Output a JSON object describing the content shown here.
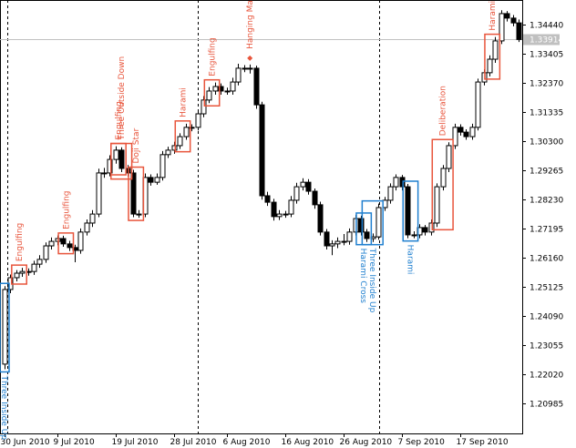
{
  "chart_data": {
    "type": "candlestick",
    "ylim": [
      1.19918,
      1.35313
    ],
    "yticks": [
      {
        "value": 1.3444,
        "label": "1.34440"
      },
      {
        "value": 1.33405,
        "label": "1.33405"
      },
      {
        "value": 1.3237,
        "label": "1.32370"
      },
      {
        "value": 1.31335,
        "label": "1.31335"
      },
      {
        "value": 1.303,
        "label": "1.30300"
      },
      {
        "value": 1.29265,
        "label": "1.29265"
      },
      {
        "value": 1.2823,
        "label": "1.28230"
      },
      {
        "value": 1.27195,
        "label": "1.27195"
      },
      {
        "value": 1.2616,
        "label": "1.26160"
      },
      {
        "value": 1.25125,
        "label": "1.25125"
      },
      {
        "value": 1.2409,
        "label": "1.24090"
      },
      {
        "value": 1.23055,
        "label": "1.23055"
      },
      {
        "value": 1.2202,
        "label": "1.22020"
      },
      {
        "value": 1.20985,
        "label": "1.20985"
      }
    ],
    "current_price": 1.33914,
    "categories": [
      "30 Jun 2010",
      null,
      null,
      null,
      null,
      null,
      null,
      null,
      null,
      "9 Jul 2010",
      null,
      null,
      null,
      null,
      null,
      null,
      null,
      null,
      null,
      "19 Jul 2010",
      null,
      null,
      null,
      null,
      null,
      null,
      null,
      null,
      null,
      "28 Jul 2010",
      null,
      null,
      null,
      null,
      null,
      null,
      null,
      null,
      "6 Aug 2010",
      null,
      null,
      null,
      null,
      null,
      null,
      null,
      null,
      null,
      "16 Aug 2010",
      null,
      null,
      null,
      null,
      null,
      null,
      null,
      null,
      null,
      "26 Aug 2010",
      null,
      null,
      null,
      null,
      null,
      null,
      null,
      null,
      null,
      "7 Sep 2010",
      null,
      null,
      null,
      null,
      null,
      null,
      null,
      null,
      null,
      "17 Sep 2010",
      null,
      null,
      null,
      null,
      null,
      null,
      null,
      null,
      null,
      null
    ],
    "ohlc": [
      [
        1.2238,
        1.2515,
        1.222,
        1.2503
      ],
      [
        1.2503,
        1.2556,
        1.249,
        1.2545
      ],
      [
        1.2545,
        1.2572,
        1.2532,
        1.2561
      ],
      [
        1.2561,
        1.258,
        1.2548,
        1.2567
      ],
      [
        1.2567,
        1.2578,
        1.2552,
        1.2567
      ],
      [
        1.2567,
        1.2605,
        1.2555,
        1.2593
      ],
      [
        1.2593,
        1.2625,
        1.258,
        1.261
      ],
      [
        1.261,
        1.267,
        1.2598,
        1.2658
      ],
      [
        1.2658,
        1.2688,
        1.2645,
        1.2674
      ],
      [
        1.2674,
        1.2695,
        1.266,
        1.2684
      ],
      [
        1.2684,
        1.2694,
        1.2655,
        1.2665
      ],
      [
        1.2665,
        1.2676,
        1.264,
        1.2652
      ],
      [
        1.2652,
        1.2662,
        1.26,
        1.2642
      ],
      [
        1.2642,
        1.272,
        1.263,
        1.2707
      ],
      [
        1.2707,
        1.2752,
        1.2695,
        1.2739
      ],
      [
        1.2739,
        1.2785,
        1.2725,
        1.2771
      ],
      [
        1.2771,
        1.2932,
        1.276,
        1.2917
      ],
      [
        1.2917,
        1.2935,
        1.29,
        1.2917
      ],
      [
        1.2917,
        1.298,
        1.2905,
        1.2965
      ],
      [
        1.2965,
        1.3012,
        1.295,
        1.2998
      ],
      [
        1.2998,
        1.3008,
        1.292,
        1.2933
      ],
      [
        1.2933,
        1.2945,
        1.2905,
        1.2917
      ],
      [
        1.2917,
        1.2928,
        1.276,
        1.2771
      ],
      [
        1.2771,
        1.2785,
        1.2758,
        1.2771
      ],
      [
        1.2771,
        1.2915,
        1.276,
        1.2901
      ],
      [
        1.2901,
        1.2912,
        1.2872,
        1.2884
      ],
      [
        1.2884,
        1.2915,
        1.2875,
        1.2901
      ],
      [
        1.2901,
        1.2995,
        1.289,
        1.2982
      ],
      [
        1.2982,
        1.301,
        1.297,
        1.2998
      ],
      [
        1.2998,
        1.3028,
        1.2985,
        1.3014
      ],
      [
        1.3014,
        1.3058,
        1.3002,
        1.3046
      ],
      [
        1.3046,
        1.3092,
        1.3035,
        1.3079
      ],
      [
        1.3079,
        1.309,
        1.3065,
        1.3079
      ],
      [
        1.3079,
        1.314,
        1.3068,
        1.3127
      ],
      [
        1.3127,
        1.319,
        1.3115,
        1.3176
      ],
      [
        1.3176,
        1.3222,
        1.3165,
        1.3208
      ],
      [
        1.3208,
        1.3238,
        1.3195,
        1.3224
      ],
      [
        1.3224,
        1.3235,
        1.3195,
        1.3208
      ],
      [
        1.3208,
        1.322,
        1.3195,
        1.3208
      ],
      [
        1.3208,
        1.3255,
        1.3195,
        1.324
      ],
      [
        1.324,
        1.3305,
        1.3228,
        1.3289
      ],
      [
        1.3289,
        1.33,
        1.3275,
        1.3289
      ],
      [
        1.3289,
        1.3302,
        1.327,
        1.3289
      ],
      [
        1.3289,
        1.3298,
        1.3145,
        1.3159
      ],
      [
        1.3159,
        1.317,
        1.2822,
        1.2836
      ],
      [
        1.2836,
        1.285,
        1.28,
        1.2813
      ],
      [
        1.2813,
        1.2825,
        1.2748,
        1.2762
      ],
      [
        1.2762,
        1.2785,
        1.275,
        1.2771
      ],
      [
        1.2771,
        1.2782,
        1.2758,
        1.2771
      ],
      [
        1.2771,
        1.2835,
        1.276,
        1.282
      ],
      [
        1.282,
        1.2882,
        1.2808,
        1.2868
      ],
      [
        1.2868,
        1.2898,
        1.2855,
        1.2884
      ],
      [
        1.2884,
        1.2895,
        1.284,
        1.2852
      ],
      [
        1.2852,
        1.2862,
        1.279,
        1.2804
      ],
      [
        1.2804,
        1.2815,
        1.2695,
        1.2707
      ],
      [
        1.2707,
        1.2718,
        1.2645,
        1.2658
      ],
      [
        1.2658,
        1.2678,
        1.2625,
        1.2665
      ],
      [
        1.2665,
        1.2688,
        1.265,
        1.2674
      ],
      [
        1.2674,
        1.27,
        1.266,
        1.2674
      ],
      [
        1.2674,
        1.272,
        1.2662,
        1.2707
      ],
      [
        1.2707,
        1.2768,
        1.2695,
        1.2755
      ],
      [
        1.2755,
        1.2765,
        1.2695,
        1.2707
      ],
      [
        1.2707,
        1.2718,
        1.2672,
        1.2684
      ],
      [
        1.2684,
        1.2702,
        1.2672,
        1.269
      ],
      [
        1.269,
        1.2808,
        1.268,
        1.2794
      ],
      [
        1.2794,
        1.2832,
        1.2782,
        1.282
      ],
      [
        1.282,
        1.288,
        1.2808,
        1.2868
      ],
      [
        1.2868,
        1.2912,
        1.2855,
        1.2901
      ],
      [
        1.2901,
        1.291,
        1.2855,
        1.2868
      ],
      [
        1.2868,
        1.2878,
        1.2685,
        1.2697
      ],
      [
        1.2697,
        1.271,
        1.2685,
        1.2697
      ],
      [
        1.2697,
        1.2735,
        1.2685,
        1.2723
      ],
      [
        1.2723,
        1.2732,
        1.2695,
        1.2707
      ],
      [
        1.2707,
        1.2752,
        1.2695,
        1.2739
      ],
      [
        1.2739,
        1.288,
        1.2725,
        1.2868
      ],
      [
        1.2868,
        1.2945,
        1.2855,
        1.2933
      ],
      [
        1.2933,
        1.3026,
        1.292,
        1.3014
      ],
      [
        1.3014,
        1.3092,
        1.3002,
        1.3079
      ],
      [
        1.3079,
        1.309,
        1.305,
        1.3062
      ],
      [
        1.3062,
        1.3072,
        1.3035,
        1.3046
      ],
      [
        1.3046,
        1.3092,
        1.3035,
        1.3079
      ],
      [
        1.3079,
        1.3252,
        1.3068,
        1.324
      ],
      [
        1.324,
        1.3285,
        1.3228,
        1.3273
      ],
      [
        1.3273,
        1.3335,
        1.326,
        1.3321
      ],
      [
        1.3321,
        1.34,
        1.3308,
        1.3386
      ],
      [
        1.3386,
        1.3495,
        1.3375,
        1.3483
      ],
      [
        1.3483,
        1.3492,
        1.3455,
        1.3467
      ],
      [
        1.3467,
        1.3478,
        1.3438,
        1.345
      ],
      [
        1.345,
        1.3462,
        1.3382,
        1.3391
      ]
    ],
    "patterns": [
      {
        "name": "Three Inside Up",
        "from": 0,
        "to": 0,
        "color": "#1f7fcf",
        "position": "below"
      },
      {
        "name": "Engulfing",
        "from": 2,
        "to": 3,
        "color": "#e8553c",
        "position": "above"
      },
      {
        "name": "Engulfing",
        "from": 10,
        "to": 11,
        "color": "#e8553c",
        "position": "above"
      },
      {
        "name": "Engulfing",
        "from": 19,
        "to": 20,
        "color": "#e8553c",
        "position": "above"
      },
      {
        "name": "Three Outside Down",
        "from": 19,
        "to": 21,
        "color": "#e8553c",
        "position": "above"
      },
      {
        "name": "Doji Star",
        "from": 22,
        "to": 23,
        "color": "#e8553c",
        "position": "above"
      },
      {
        "name": "Harami",
        "from": 30,
        "to": 31,
        "color": "#e8553c",
        "position": "above"
      },
      {
        "name": "Engulfing",
        "from": 35,
        "to": 36,
        "color": "#e8553c",
        "position": "above"
      },
      {
        "name": "Hanging Man",
        "from": 42,
        "to": 42,
        "color": "#e8553c",
        "position": "above",
        "box": false
      },
      {
        "name": "Harami Cross",
        "from": 61,
        "to": 62,
        "color": "#1f7fcf",
        "position": "below"
      },
      {
        "name": "Three Inside Up",
        "from": 62,
        "to": 64,
        "color": "#1f7fcf",
        "position": "below"
      },
      {
        "name": "Harami",
        "from": 69,
        "to": 70,
        "color": "#1f7fcf",
        "position": "below"
      },
      {
        "name": "Deliberation",
        "from": 74,
        "to": 76,
        "color": "#e8553c",
        "position": "above"
      },
      {
        "name": "Harami",
        "from": 83,
        "to": 84,
        "color": "#e8553c",
        "position": "above"
      }
    ]
  }
}
